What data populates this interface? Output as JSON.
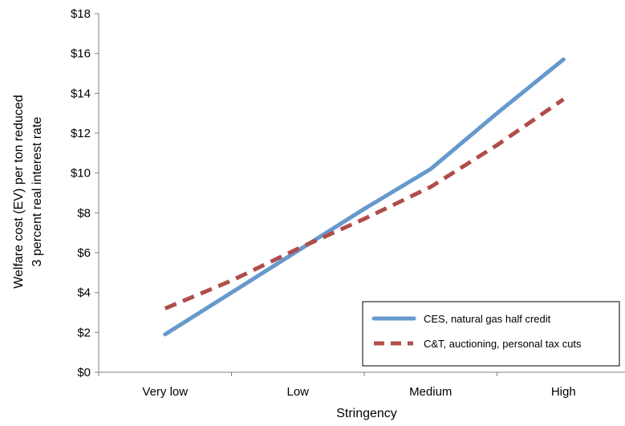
{
  "chart_data": {
    "type": "line",
    "categories": [
      "Very low",
      "Low",
      "Medium",
      "High"
    ],
    "xlabel": "Stringency",
    "ylabel_lines": [
      "Welfare cost (EV) per ton reduced",
      "3 percent real interest rate"
    ],
    "ylim": [
      0,
      18
    ],
    "ytick_values": [
      0,
      2,
      4,
      6,
      8,
      10,
      12,
      14,
      16,
      18
    ],
    "ytick_labels": [
      "$0",
      "$2",
      "$4",
      "$6",
      "$8",
      "$10",
      "$12",
      "$14",
      "$16",
      "$18"
    ],
    "grid": false,
    "legend_position": "bottom-right",
    "series": [
      {
        "name": "CES, natural gas half credit",
        "color": "#6699cc",
        "style": "solid",
        "x": [
          0,
          0.5,
          1,
          1.5,
          2,
          2.5,
          3
        ],
        "values": [
          1.9,
          4.0,
          6.1,
          8.2,
          10.2,
          13.0,
          15.7
        ]
      },
      {
        "name": "C&T, auctioning, personal tax cuts",
        "color": "#b04d4a",
        "style": "dashed",
        "x": [
          0,
          0.5,
          1,
          1.5,
          2,
          2.5,
          3
        ],
        "values": [
          3.2,
          4.6,
          6.2,
          7.7,
          9.3,
          11.4,
          13.7
        ]
      }
    ]
  }
}
